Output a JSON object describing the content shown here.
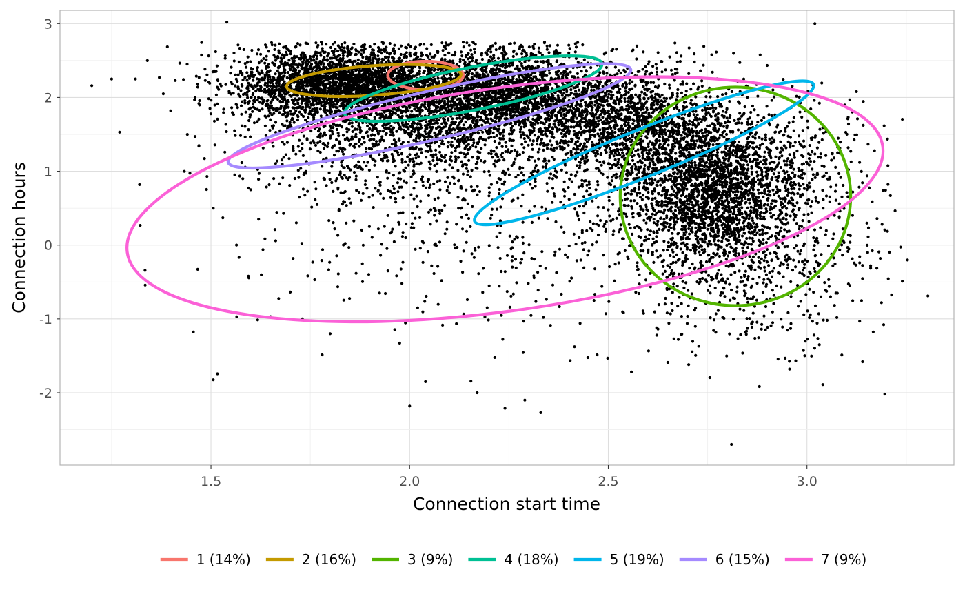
{
  "chart_data": {
    "type": "scatter",
    "title": "",
    "xlabel": "Connection start time",
    "ylabel": "Connection hours",
    "xlim": [
      1.12,
      3.37
    ],
    "ylim": [
      -2.98,
      3.18
    ],
    "x_ticks": [
      1.5,
      2.0,
      2.5,
      3.0
    ],
    "x_tick_labels": [
      "1.5",
      "2.0",
      "2.5",
      "3.0"
    ],
    "y_ticks": [
      -2,
      -1,
      0,
      1,
      2,
      3
    ],
    "y_tick_labels": [
      "-2",
      "-1",
      "0",
      "1",
      "2",
      "3"
    ],
    "grid": true,
    "legend_position": "bottom",
    "points_color": "#000000",
    "ellipses": [
      {
        "name": "1 (14%)",
        "color": "#F8766D",
        "center": [
          2.04,
          2.3
        ],
        "semi_axes": [
          0.095,
          0.19
        ],
        "rotation_deg": 0
      },
      {
        "name": "2 (16%)",
        "color": "#C49A00",
        "center": [
          1.91,
          2.23
        ],
        "semi_axes": [
          0.22,
          0.2
        ],
        "rotation_deg": -4
      },
      {
        "name": "3 (9%)",
        "color": "#53B400",
        "center": [
          2.82,
          0.66
        ],
        "semi_axes": [
          0.29,
          1.48
        ],
        "rotation_deg": 0
      },
      {
        "name": "4 (18%)",
        "color": "#00C094",
        "center": [
          2.16,
          2.12
        ],
        "semi_axes": [
          0.33,
          0.29
        ],
        "rotation_deg": -11
      },
      {
        "name": "5 (19%)",
        "color": "#00B6EB",
        "center": [
          2.59,
          1.25
        ],
        "semi_axes": [
          0.46,
          0.32
        ],
        "rotation_deg": -22
      },
      {
        "name": "6 (15%)",
        "color": "#A58AFF",
        "center": [
          2.05,
          1.75
        ],
        "semi_axes": [
          0.52,
          0.33
        ],
        "rotation_deg": -13
      },
      {
        "name": "7 (9%)",
        "color": "#FB61D7",
        "center": [
          2.24,
          0.62
        ],
        "semi_axes": [
          0.96,
          1.51
        ],
        "rotation_deg": -8
      }
    ],
    "point_clusters": [
      {
        "cx": 1.83,
        "cy": 2.18,
        "sx": 0.13,
        "sy": 0.24,
        "n": 2600
      },
      {
        "cx": 2.22,
        "cy": 2.05,
        "sx": 0.15,
        "sy": 0.3,
        "n": 2400
      },
      {
        "cx": 2.55,
        "cy": 1.6,
        "sx": 0.12,
        "sy": 0.4,
        "n": 1500
      },
      {
        "cx": 2.76,
        "cy": 0.78,
        "sx": 0.1,
        "sy": 0.5,
        "n": 2100
      },
      {
        "cx": 2.0,
        "cy": 1.5,
        "sx": 0.2,
        "sy": 0.4,
        "n": 1200
      },
      {
        "cx": 2.3,
        "cy": 0.4,
        "sx": 0.35,
        "sy": 0.8,
        "n": 700
      },
      {
        "cx": 2.85,
        "cy": -0.3,
        "sx": 0.15,
        "sy": 0.55,
        "n": 500
      },
      {
        "cx": 2.95,
        "cy": 0.9,
        "sx": 0.12,
        "sy": 0.6,
        "n": 400
      }
    ],
    "outlier_points": [
      [
        1.2,
        2.16
      ],
      [
        1.25,
        2.25
      ],
      [
        1.27,
        1.53
      ],
      [
        1.31,
        2.25
      ],
      [
        1.34,
        2.5
      ],
      [
        1.37,
        2.27
      ],
      [
        1.38,
        2.05
      ],
      [
        1.41,
        2.23
      ],
      [
        1.44,
        2.45
      ],
      [
        1.46,
        2.0
      ],
      [
        1.46,
        1.47
      ],
      [
        1.47,
        2.27
      ],
      [
        1.49,
        0.93
      ],
      [
        1.51,
        2.35
      ],
      [
        1.53,
        0.37
      ],
      [
        1.54,
        3.02
      ],
      [
        1.56,
        0.95
      ],
      [
        1.58,
        0.9
      ],
      [
        1.65,
        -0.97
      ],
      [
        1.73,
        -1.0
      ],
      [
        1.8,
        -1.2
      ],
      [
        1.99,
        0.1
      ],
      [
        2.0,
        -2.18
      ],
      [
        2.04,
        -1.85
      ],
      [
        2.17,
        -2.0
      ],
      [
        2.24,
        -2.21
      ],
      [
        2.29,
        -2.1
      ],
      [
        2.33,
        -2.27
      ],
      [
        1.6,
        0.75
      ],
      [
        1.62,
        0.35
      ],
      [
        2.81,
        -2.7
      ],
      [
        3.04,
        -1.89
      ],
      [
        3.14,
        -1.58
      ],
      [
        3.24,
        -0.49
      ],
      [
        3.21,
        0.67
      ],
      [
        3.02,
        3.0
      ]
    ]
  }
}
